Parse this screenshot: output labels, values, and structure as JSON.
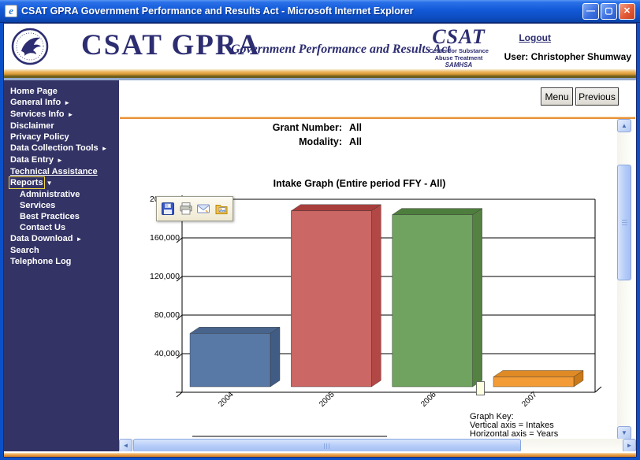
{
  "window": {
    "title": "CSAT GPRA Government Performance and Results Act - Microsoft Internet Explorer"
  },
  "glyphs": {
    "ie_e": "e",
    "minimize": "—",
    "maximize": "▢",
    "close": "✕",
    "arrow_right": "►",
    "arrow_down": "▼",
    "scroll_up": "▲",
    "scroll_down": "▼",
    "scroll_left": "◄",
    "scroll_right": "►"
  },
  "header": {
    "brand": "CSAT GPRA",
    "tagline": "Government Performance and Results Act",
    "csat_logo": {
      "acronym": "CSAT",
      "line1": "Center for Substance",
      "line2": "Abuse Treatment",
      "line3": "SAMHSA"
    },
    "logout_label": "Logout",
    "user_label": "User: Christopher Shumway"
  },
  "sidebar": {
    "bg_color": "#333366",
    "highlight_box_color": "#F5D93F",
    "items": [
      {
        "label": "Home Page"
      },
      {
        "label": "General Info",
        "arrow": "right"
      },
      {
        "label": "Services Info",
        "arrow": "right"
      },
      {
        "label": "Disclaimer"
      },
      {
        "label": "Privacy Policy"
      },
      {
        "label": "Data Collection Tools",
        "arrow": "right"
      },
      {
        "label": "Data Entry",
        "arrow": "right"
      },
      {
        "label": "Technical Assistance",
        "underline": true
      },
      {
        "label": "Reports",
        "arrow": "down",
        "selected": true
      },
      {
        "label": "Administrative",
        "indent": true
      },
      {
        "label": "Services",
        "indent": true
      },
      {
        "label": "Best Practices",
        "indent": true
      },
      {
        "label": "Contact Us",
        "indent": true
      },
      {
        "label": "Data Download",
        "arrow": "right"
      },
      {
        "label": "Search"
      },
      {
        "label": "Telephone Log"
      }
    ]
  },
  "toolbar": {
    "menu_label": "Menu",
    "previous_label": "Previous"
  },
  "filters": {
    "grant_label": "Grant Number:",
    "grant_value": "All",
    "modality_label": "Modality:",
    "modality_value": "All"
  },
  "image_toolbar": {
    "icons": [
      "save-icon",
      "print-icon",
      "mail-icon",
      "pictures-icon"
    ]
  },
  "graph_key": {
    "title": "Graph Key:",
    "line1": "Vertical axis = Intakes",
    "line2": "Horizontal axis = Years"
  },
  "chart_data": {
    "type": "bar",
    "title": "Intake Graph (Entire period FFY - All)",
    "categories": [
      "2004",
      "2005",
      "2006",
      "2007"
    ],
    "values": [
      61000,
      188000,
      184000,
      16000
    ],
    "xlabel": "Years",
    "ylabel": "Intakes",
    "ylim": [
      0,
      200000
    ],
    "ytick_step": 40000,
    "yticks": [
      "200,000",
      "160,000",
      "120,000",
      "80,000",
      "40,000"
    ],
    "grid": true,
    "style": "3d",
    "legend": "none",
    "bar_colors": [
      {
        "front": "#5878A5",
        "top": "#48648C",
        "side": "#415C84"
      },
      {
        "front": "#CB6764",
        "top": "#A83E3C",
        "side": "#B14845"
      },
      {
        "front": "#6FA35F",
        "top": "#4E7E3D",
        "side": "#558142"
      },
      {
        "front": "#F39B37",
        "top": "#E08A25",
        "side": "#C97917"
      }
    ]
  }
}
